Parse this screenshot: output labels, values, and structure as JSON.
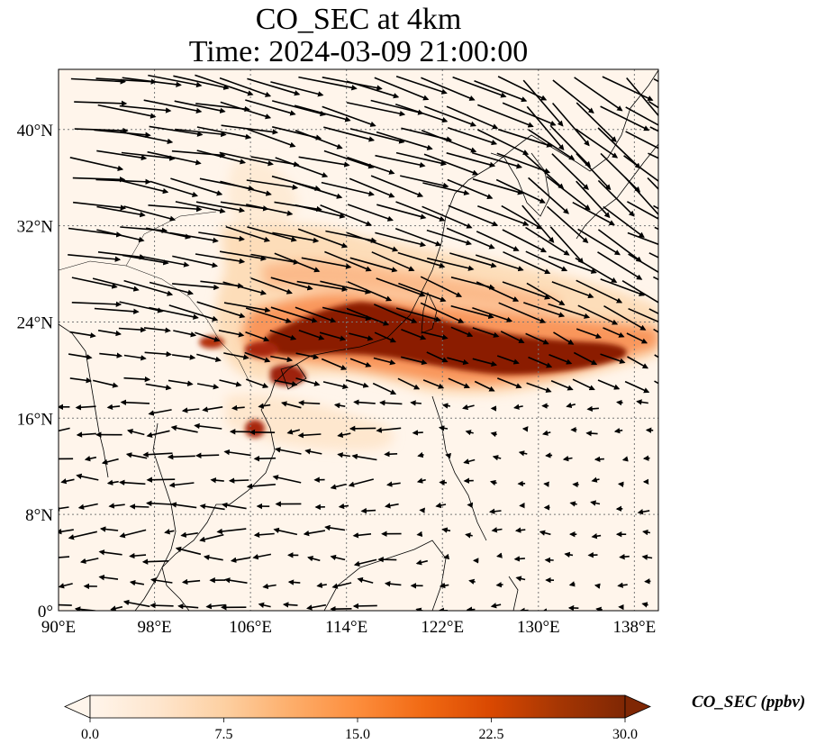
{
  "title": {
    "line1": "CO_SEC at 4km",
    "line2": "Time: 2024-03-09 21:00:00"
  },
  "map": {
    "lon_range": [
      90,
      140
    ],
    "lat_range": [
      0,
      45
    ],
    "lon_ticks": [
      "90°E",
      "98°E",
      "106°E",
      "114°E",
      "122°E",
      "130°E",
      "138°E"
    ],
    "lat_ticks": [
      "0°",
      "8°N",
      "16°N",
      "24°N",
      "32°N",
      "40°N"
    ],
    "gridlines": true,
    "background_color": "#fff5eb",
    "coastline_color": "#000000",
    "wind_vectors": true
  },
  "colorbar": {
    "label": "CO_SEC (ppbv)",
    "min": 0.0,
    "max": 30.0,
    "extend": "both",
    "ticks": [
      "0.0",
      "7.5",
      "15.0",
      "22.5",
      "30.0"
    ],
    "colors": [
      "#fff5eb",
      "#fee6ce",
      "#fdd0a2",
      "#fdae6b",
      "#fd8d3c",
      "#f16913",
      "#d94801",
      "#a63603",
      "#7f2704"
    ]
  }
}
